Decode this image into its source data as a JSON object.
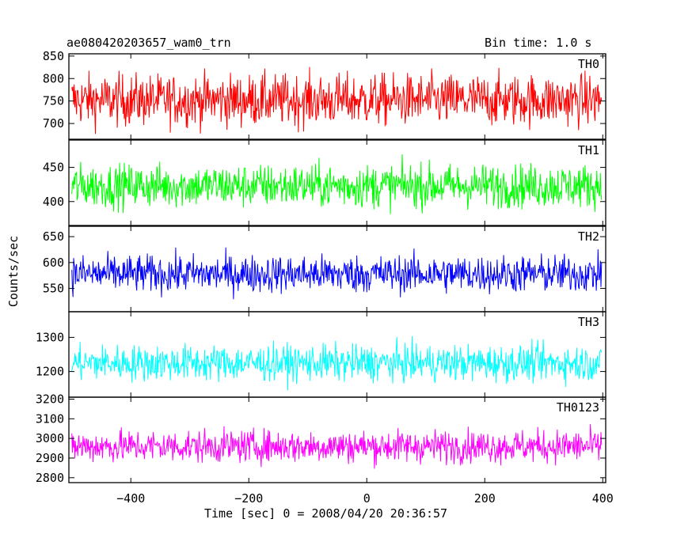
{
  "header": {
    "title": "ae080420203657_wam0_trn",
    "bin_time": "Bin time: 1.0 s"
  },
  "axes": {
    "xlabel": "Time [sec] 0 = 2008/04/20 20:36:57",
    "ylabel": "Counts/sec"
  },
  "chart_data": {
    "type": "line",
    "x_range": [
      -505,
      405
    ],
    "x_ticks": [
      -400,
      -200,
      0,
      200,
      400
    ],
    "x_tick_labels": [
      "−400",
      "−200",
      "0",
      "200",
      "400"
    ],
    "x_start": -500,
    "x_end": 398,
    "x_step": 1,
    "panels": [
      {
        "name": "TH0",
        "color": "#ff0000",
        "ylim": [
          665,
          855
        ],
        "mean": 752,
        "spread": 38,
        "ticks": [
          700,
          750,
          800,
          850
        ]
      },
      {
        "name": "TH1",
        "color": "#00ff00",
        "ylim": [
          365,
          490
        ],
        "mean": 423,
        "spread": 21,
        "ticks": [
          400,
          450
        ]
      },
      {
        "name": "TH2",
        "color": "#0000ff",
        "ylim": [
          505,
          670
        ],
        "mean": 578,
        "spread": 24,
        "ticks": [
          550,
          600,
          650
        ]
      },
      {
        "name": "TH3",
        "color": "#00ffff",
        "ylim": [
          1125,
          1375
        ],
        "mean": 1225,
        "spread": 35,
        "ticks": [
          1200,
          1300
        ]
      },
      {
        "name": "TH0123",
        "color": "#ff00ff",
        "ylim": [
          2775,
          3210
        ],
        "mean": 2960,
        "spread": 55,
        "ticks": [
          2800,
          2900,
          3000,
          3100,
          3200
        ]
      }
    ]
  }
}
